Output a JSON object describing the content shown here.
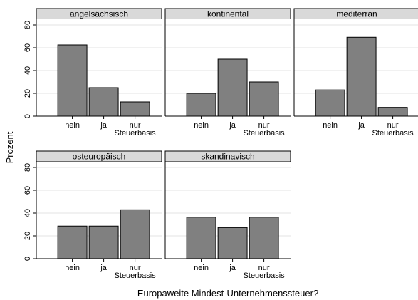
{
  "chart_data": {
    "type": "bar",
    "ylabel": "Prozent",
    "xlabel": "Europaweite Mindest-Unternehmenssteuer?",
    "ylim": [
      0,
      85
    ],
    "yticks": [
      0,
      20,
      40,
      60,
      80
    ],
    "categories": [
      "nein",
      "ja",
      "nur Steuerbasis"
    ],
    "category_label_lines": [
      [
        "nein"
      ],
      [
        "ja"
      ],
      [
        "nur",
        "Steuerbasis"
      ]
    ],
    "bar_color": "#808080",
    "panel_strip_color": "#d9d9d9",
    "panels": [
      {
        "name": "angelsächsisch",
        "values": [
          62.5,
          25,
          12.5
        ]
      },
      {
        "name": "kontinental",
        "values": [
          20,
          50,
          30
        ]
      },
      {
        "name": "mediterran",
        "values": [
          23,
          69.2,
          7.7
        ]
      },
      {
        "name": "osteuropäisch",
        "values": [
          28.6,
          28.6,
          42.9
        ]
      },
      {
        "name": "skandinavisch",
        "values": [
          36.4,
          27.3,
          36.4
        ]
      }
    ]
  }
}
